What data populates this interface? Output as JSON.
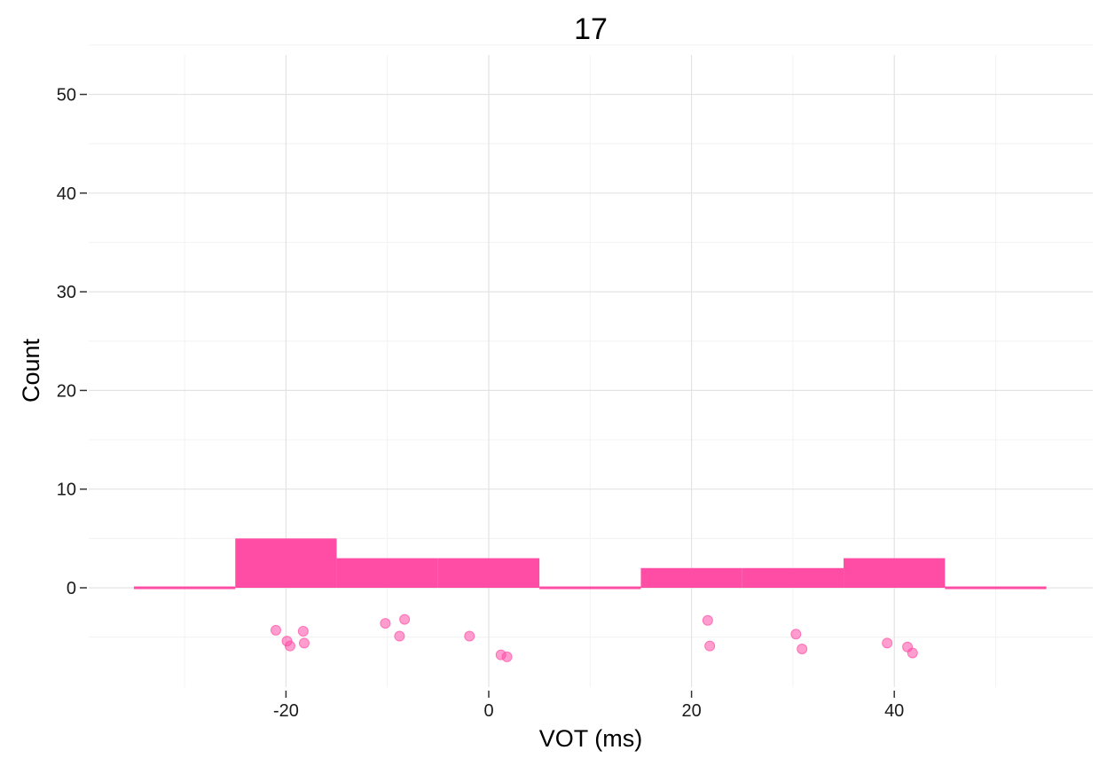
{
  "chart_data": {
    "type": "bar",
    "title": "17",
    "xlabel": "VOT (ms)",
    "ylabel": "Count",
    "xlim": [
      -39,
      59
    ],
    "ylim": [
      -9.5,
      54
    ],
    "x_ticks": [
      -20,
      0,
      20,
      40
    ],
    "x_tick_labels": [
      "-20",
      "0",
      "20",
      "40"
    ],
    "y_ticks": [
      0,
      10,
      20,
      30,
      40,
      50
    ],
    "y_tick_labels": [
      "0",
      "10",
      "20",
      "30",
      "40",
      "50"
    ],
    "grid": true,
    "legend": "none",
    "color": "#ff4da6",
    "histogram": {
      "bin_width": 10,
      "bins": [
        {
          "x0": -35,
          "x1": -25,
          "count": 0
        },
        {
          "x0": -25,
          "x1": -15,
          "count": 5
        },
        {
          "x0": -15,
          "x1": -5,
          "count": 3
        },
        {
          "x0": -5,
          "x1": 5,
          "count": 3
        },
        {
          "x0": 5,
          "x1": 15,
          "count": 0
        },
        {
          "x0": 15,
          "x1": 25,
          "count": 2
        },
        {
          "x0": 25,
          "x1": 35,
          "count": 2
        },
        {
          "x0": 35,
          "x1": 45,
          "count": 3
        },
        {
          "x0": 45,
          "x1": 55,
          "count": 0
        }
      ]
    },
    "points": [
      {
        "x": -21.0,
        "y": -4.3
      },
      {
        "x": -19.9,
        "y": -5.4
      },
      {
        "x": -19.6,
        "y": -5.9
      },
      {
        "x": -18.3,
        "y": -4.4
      },
      {
        "x": -18.2,
        "y": -5.6
      },
      {
        "x": -10.2,
        "y": -3.6
      },
      {
        "x": -8.8,
        "y": -4.9
      },
      {
        "x": -8.3,
        "y": -3.2
      },
      {
        "x": -1.9,
        "y": -4.9
      },
      {
        "x": 1.2,
        "y": -6.8
      },
      {
        "x": 1.8,
        "y": -7.0
      },
      {
        "x": 21.6,
        "y": -3.3
      },
      {
        "x": 21.8,
        "y": -5.9
      },
      {
        "x": 30.3,
        "y": -4.7
      },
      {
        "x": 30.9,
        "y": -6.2
      },
      {
        "x": 39.3,
        "y": -5.6
      },
      {
        "x": 41.3,
        "y": -6.0
      },
      {
        "x": 41.8,
        "y": -6.6
      }
    ]
  }
}
